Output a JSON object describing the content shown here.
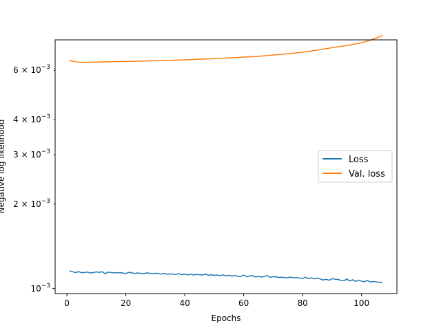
{
  "chart_data": {
    "type": "line",
    "title": "",
    "xlabel": "Epochs",
    "ylabel": "Negative log likelihood",
    "yscale": "log",
    "xlim": [
      -4,
      112
    ],
    "ylim": [
      0.00096,
      0.0077
    ],
    "x_ticks": [
      0,
      20,
      40,
      60,
      80,
      100
    ],
    "x_tick_labels": [
      "0",
      "20",
      "40",
      "60",
      "80",
      "100"
    ],
    "y_ticks": [
      0.001,
      0.002,
      0.003,
      0.004,
      0.006
    ],
    "y_tick_labels": [
      {
        "base": "10",
        "exp": "−3",
        "mant": ""
      },
      {
        "base": "2 × 10",
        "exp": "−3",
        "mant": "2"
      },
      {
        "base": "3 × 10",
        "exp": "−3",
        "mant": "3"
      },
      {
        "base": "4 × 10",
        "exp": "−3",
        "mant": "4"
      },
      {
        "base": "6 × 10",
        "exp": "−3",
        "mant": "6"
      }
    ],
    "grid": false,
    "legend_position": "center-right",
    "series": [
      {
        "name": "Loss",
        "color": "#1f77b4",
        "x": [
          1,
          2,
          3,
          4,
          5,
          6,
          7,
          8,
          9,
          10,
          11,
          12,
          13,
          14,
          15,
          16,
          17,
          18,
          19,
          20,
          21,
          22,
          23,
          24,
          25,
          26,
          27,
          28,
          29,
          30,
          31,
          32,
          33,
          34,
          35,
          36,
          37,
          38,
          39,
          40,
          41,
          42,
          43,
          44,
          45,
          46,
          47,
          48,
          49,
          50,
          51,
          52,
          53,
          54,
          55,
          56,
          57,
          58,
          59,
          60,
          61,
          62,
          63,
          64,
          65,
          66,
          67,
          68,
          69,
          70,
          71,
          72,
          73,
          74,
          75,
          76,
          77,
          78,
          79,
          80,
          81,
          82,
          83,
          84,
          85,
          86,
          87,
          88,
          89,
          90,
          91,
          92,
          93,
          94,
          95,
          96,
          97,
          98,
          99,
          100,
          101,
          102,
          103,
          104,
          105,
          106,
          107
        ],
        "values": [
          0.001155,
          0.001148,
          0.00114,
          0.00115,
          0.001138,
          0.001142,
          0.001145,
          0.001136,
          0.001141,
          0.001147,
          0.001143,
          0.001148,
          0.00113,
          0.001144,
          0.001141,
          0.001139,
          0.001138,
          0.00114,
          0.001136,
          0.001131,
          0.001143,
          0.001139,
          0.001132,
          0.001137,
          0.001133,
          0.001128,
          0.001138,
          0.001135,
          0.00113,
          0.001134,
          0.001131,
          0.001127,
          0.001133,
          0.001124,
          0.001129,
          0.001126,
          0.001123,
          0.001131,
          0.001121,
          0.001127,
          0.001119,
          0.001126,
          0.001118,
          0.001124,
          0.00112,
          0.001117,
          0.001127,
          0.001115,
          0.001121,
          0.001114,
          0.001118,
          0.001112,
          0.00112,
          0.00111,
          0.001116,
          0.001108,
          0.001113,
          0.001106,
          0.001104,
          0.001118,
          0.001102,
          0.001109,
          0.001112,
          0.0011,
          0.001107,
          0.001099,
          0.001105,
          0.001112,
          0.001097,
          0.001103,
          0.001101,
          0.001096,
          0.001098,
          0.001094,
          0.001093,
          0.001099,
          0.001092,
          0.001095,
          0.00109,
          0.001088,
          0.001097,
          0.001086,
          0.001092,
          0.001084,
          0.001089,
          0.001082,
          0.001073,
          0.001079,
          0.001071,
          0.001085,
          0.00108,
          0.001078,
          0.00107,
          0.001066,
          0.001081,
          0.001064,
          0.001075,
          0.001061,
          0.001072,
          0.001063,
          0.001058,
          0.001069,
          0.001055,
          0.00106,
          0.001057,
          0.001054,
          0.001052
        ]
      },
      {
        "name": "Val. loss",
        "color": "#ff7f0e",
        "x": [
          1,
          3,
          5,
          8,
          12,
          16,
          20,
          25,
          30,
          35,
          40,
          45,
          50,
          55,
          60,
          65,
          70,
          75,
          80,
          85,
          90,
          95,
          100,
          103,
          105,
          107
        ],
        "values": [
          0.0065,
          0.00643,
          0.0064,
          0.00641,
          0.00643,
          0.00644,
          0.00645,
          0.00647,
          0.00649,
          0.00651,
          0.00654,
          0.00657,
          0.0066,
          0.00664,
          0.00668,
          0.00673,
          0.0068,
          0.00687,
          0.00696,
          0.00708,
          0.00722,
          0.00735,
          0.00752,
          0.00768,
          0.00782,
          0.00798
        ]
      }
    ]
  }
}
